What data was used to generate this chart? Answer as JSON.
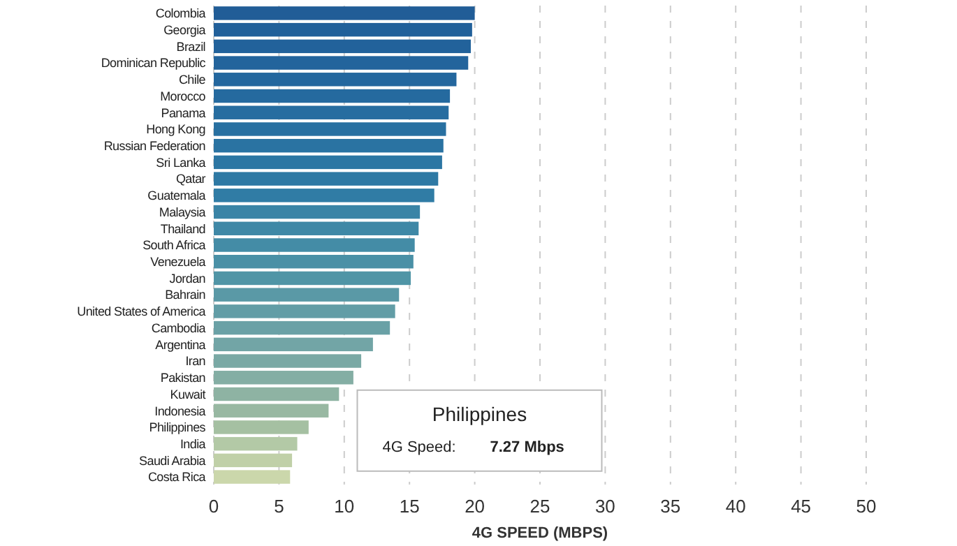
{
  "chart_data": {
    "type": "bar",
    "orientation": "horizontal",
    "xlabel": "4G SPEED (MBPS)",
    "categories": [
      "Colombia",
      "Georgia",
      "Brazil",
      "Dominican Republic",
      "Chile",
      "Morocco",
      "Panama",
      "Hong Kong",
      "Russian Federation",
      "Sri Lanka",
      "Qatar",
      "Guatemala",
      "Malaysia",
      "Thailand",
      "South Africa",
      "Venezuela",
      "Jordan",
      "Bahrain",
      "United States of America",
      "Cambodia",
      "Argentina",
      "Iran",
      "Pakistan",
      "Kuwait",
      "Indonesia",
      "Philippines",
      "India",
      "Saudi Arabia",
      "Costa Rica"
    ],
    "values": [
      20.0,
      19.8,
      19.7,
      19.5,
      18.6,
      18.1,
      18.0,
      17.8,
      17.6,
      17.5,
      17.2,
      16.9,
      15.8,
      15.7,
      15.4,
      15.3,
      15.1,
      14.2,
      13.9,
      13.5,
      12.2,
      11.3,
      10.7,
      9.6,
      8.8,
      7.27,
      6.4,
      6.0,
      5.85
    ],
    "colors": [
      "#215d97",
      "#21609a",
      "#22629b",
      "#23649c",
      "#24679e",
      "#256a9f",
      "#276da0",
      "#2870a1",
      "#2a73a2",
      "#2c76a3",
      "#2e79a4",
      "#307ca5",
      "#3a84a6",
      "#3f88a6",
      "#448ca6",
      "#4a90a6",
      "#5095a6",
      "#5a99a6",
      "#629da6",
      "#6aa1a6",
      "#72a5a6",
      "#7aa9a5",
      "#84aea4",
      "#8eb3a3",
      "#98b8a2",
      "#a5c0a2",
      "#b3c9a6",
      "#c0d0a8",
      "#cbd7ab"
    ],
    "xlim": [
      0,
      50
    ],
    "xticks": [
      0,
      5,
      10,
      15,
      20,
      25,
      30,
      35,
      40,
      45,
      50
    ],
    "grid": "x",
    "annotations": [
      "Philippines",
      "4G Speed:",
      "7.27 Mbps"
    ]
  }
}
